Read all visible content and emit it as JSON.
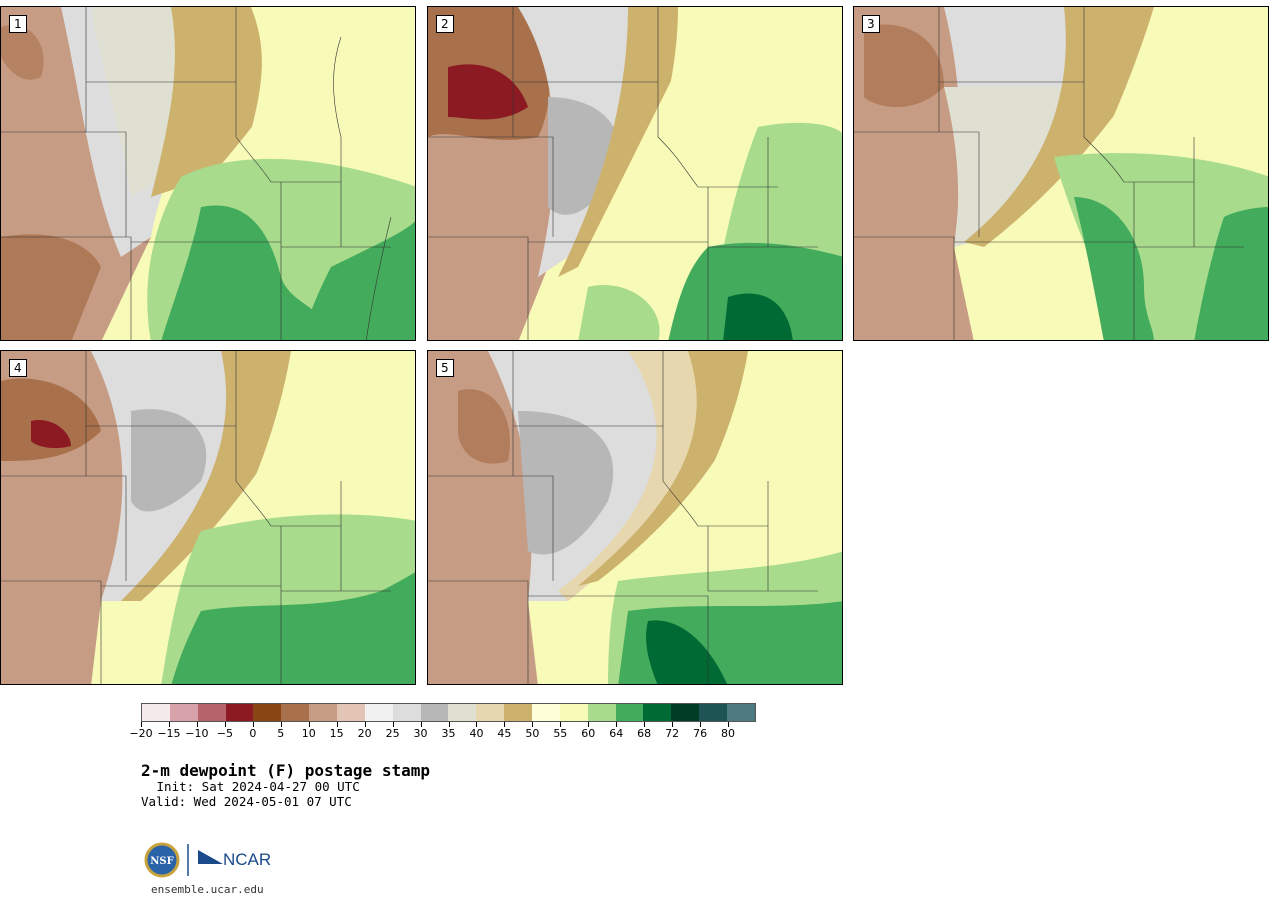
{
  "title": "2-m dewpoint (F) postage stamp",
  "init_line": " Init: Sat 2024-04-27 00 UTC",
  "valid_line": "Valid: Wed 2024-05-01 07 UTC",
  "site": "ensemble.ucar.edu",
  "logos": {
    "nsf": "NSF",
    "ncar": "NCAR"
  },
  "panels": [
    {
      "label": "1"
    },
    {
      "label": "2"
    },
    {
      "label": "3"
    },
    {
      "label": "4"
    },
    {
      "label": "5"
    }
  ],
  "colorbar": {
    "colors": [
      "#f4eaec",
      "#d7a2aa",
      "#b5646a",
      "#8b1a22",
      "#8a4514",
      "#a8714c",
      "#c79c84",
      "#e3c5b6",
      "#f1f1f1",
      "#dddddd",
      "#b7b7b7",
      "#e0e0d2",
      "#e7d7ae",
      "#cdb26e",
      "#fefed8",
      "#f8fab8",
      "#a8dc8c",
      "#43ab5c",
      "#006a35",
      "#003d26",
      "#1e5454",
      "#4d7b80"
    ],
    "tick_labels": [
      "−20",
      "−15",
      "−10",
      "−5",
      "0",
      "5",
      "10",
      "15",
      "20",
      "25",
      "30",
      "35",
      "40",
      "45",
      "50",
      "55",
      "60",
      "64",
      "68",
      "72",
      "76",
      "80"
    ]
  }
}
